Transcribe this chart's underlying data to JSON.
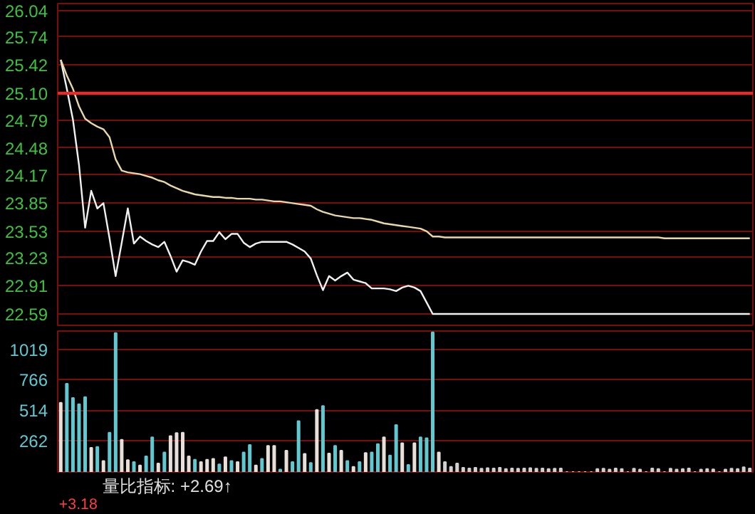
{
  "chart_data": [
    {
      "type": "line",
      "categories": [
        null,
        null,
        null,
        null,
        null,
        null,
        null,
        null,
        null,
        null,
        null,
        null,
        null,
        null,
        null,
        null,
        null,
        null,
        null,
        null,
        null,
        null,
        null,
        null,
        null,
        null,
        null,
        null,
        null,
        null,
        null,
        null,
        null,
        null,
        null,
        null,
        null,
        null,
        null,
        null,
        null,
        null,
        null,
        null,
        null,
        null,
        null,
        null,
        null,
        null,
        null,
        null,
        null,
        null,
        null,
        null,
        null,
        null,
        null,
        null,
        null,
        null,
        null,
        null,
        null,
        null,
        null,
        null,
        null,
        null,
        null,
        null,
        null,
        null,
        null,
        null,
        null,
        null,
        null,
        null,
        null,
        null,
        null,
        null,
        null,
        null,
        null,
        null,
        null,
        null,
        null,
        null,
        null,
        null,
        null,
        null,
        null,
        null,
        null,
        null,
        null,
        null,
        null,
        null,
        null,
        null,
        null,
        null,
        null,
        null,
        null,
        null,
        null,
        null
      ],
      "ylim": [
        22.46,
        26.12
      ],
      "yticks": [
        22.59,
        22.91,
        23.23,
        23.53,
        23.85,
        24.17,
        24.48,
        24.79,
        {
          "value": 25.1,
          "label": "25.10"
        },
        25.42,
        25.74,
        26.04
      ],
      "tick_labels": "y",
      "grid": "y",
      "ref_lines": [
        {
          "axis": "y",
          "value": 25.1,
          "color": "#ff2020"
        }
      ],
      "series": [
        {
          "color": "#f0f0f0",
          "values": [
            25.48,
            25.15,
            24.8,
            24.28,
            23.57,
            23.99,
            23.79,
            23.85,
            23.45,
            23.02,
            23.4,
            23.79,
            23.39,
            23.47,
            23.42,
            23.38,
            23.35,
            23.41,
            23.25,
            23.07,
            23.2,
            23.18,
            23.15,
            23.3,
            23.42,
            23.42,
            23.52,
            23.44,
            23.5,
            23.5,
            23.4,
            23.35,
            23.39,
            23.41,
            23.41,
            23.41,
            23.41,
            23.41,
            23.38,
            23.34,
            23.3,
            23.22,
            23.03,
            22.86,
            23.02,
            22.97,
            23.02,
            23.06,
            22.98,
            22.96,
            22.94,
            22.88,
            22.88,
            22.88,
            22.87,
            22.85,
            22.89,
            22.91,
            22.89,
            22.85,
            22.72,
            22.59,
            22.59,
            22.59,
            22.59,
            22.59,
            22.59,
            22.59,
            22.59,
            22.59,
            22.59,
            22.59,
            22.59,
            22.59,
            22.59,
            22.59,
            22.59,
            22.59,
            22.59,
            22.59,
            22.59,
            22.59,
            22.59,
            22.59,
            22.59,
            22.59,
            22.59,
            22.59,
            22.59,
            22.59,
            22.59,
            22.59,
            22.59,
            22.59,
            22.59,
            22.59,
            22.59,
            22.59,
            22.59,
            22.59,
            22.59,
            22.59,
            22.59,
            22.59,
            22.59,
            22.59,
            22.59,
            22.59,
            22.59,
            22.59,
            22.59,
            22.59,
            22.59,
            22.59
          ]
        },
        {
          "color": "#e8d8a8",
          "values": [
            25.48,
            25.3,
            25.15,
            24.95,
            24.81,
            24.76,
            24.72,
            24.69,
            24.6,
            24.35,
            24.22,
            24.2,
            24.19,
            24.18,
            24.16,
            24.14,
            24.11,
            24.09,
            24.05,
            24.02,
            23.99,
            23.97,
            23.95,
            23.94,
            23.93,
            23.92,
            23.92,
            23.91,
            23.91,
            23.9,
            23.9,
            23.9,
            23.89,
            23.89,
            23.88,
            23.87,
            23.87,
            23.86,
            23.85,
            23.84,
            23.83,
            23.82,
            23.78,
            23.75,
            23.73,
            23.71,
            23.7,
            23.69,
            23.68,
            23.68,
            23.67,
            23.66,
            23.64,
            23.62,
            23.61,
            23.6,
            23.59,
            23.58,
            23.57,
            23.56,
            23.53,
            23.47,
            23.47,
            23.46,
            23.46,
            23.46,
            23.46,
            23.46,
            23.46,
            23.46,
            23.46,
            23.46,
            23.46,
            23.46,
            23.46,
            23.46,
            23.46,
            23.46,
            23.46,
            23.46,
            23.46,
            23.46,
            23.46,
            23.46,
            23.46,
            23.46,
            23.46,
            23.46,
            23.46,
            23.46,
            23.46,
            23.46,
            23.46,
            23.46,
            23.46,
            23.46,
            23.46,
            23.46,
            23.46,
            23.45,
            23.45,
            23.45,
            23.45,
            23.45,
            23.45,
            23.45,
            23.45,
            23.45,
            23.45,
            23.45,
            23.45,
            23.45,
            23.45,
            23.45
          ]
        }
      ]
    },
    {
      "type": "bar",
      "categories": [
        null,
        null,
        null,
        null,
        null,
        null,
        null,
        null,
        null,
        null,
        null,
        null,
        null,
        null,
        null,
        null,
        null,
        null,
        null,
        null,
        null,
        null,
        null,
        null,
        null,
        null,
        null,
        null,
        null,
        null,
        null,
        null,
        null,
        null,
        null,
        null,
        null,
        null,
        null,
        null,
        null,
        null,
        null,
        null,
        null,
        null,
        null,
        null,
        null,
        null,
        null,
        null,
        null,
        null,
        null,
        null,
        null,
        null,
        null,
        null,
        null,
        null,
        null,
        null,
        null,
        null,
        null,
        null,
        null,
        null,
        null,
        null,
        null,
        null,
        null,
        null,
        null,
        null,
        null,
        null,
        null,
        null,
        null,
        null,
        null,
        null,
        null,
        null,
        null,
        null,
        null,
        null,
        null,
        null,
        null,
        null,
        null,
        null,
        null,
        null,
        null,
        null,
        null,
        null,
        null,
        null,
        null,
        null,
        null,
        null,
        null,
        null,
        null,
        null
      ],
      "ylim": [
        0,
        1170
      ],
      "yticks": [
        262,
        514,
        766,
        1019
      ],
      "tick_labels": "y",
      "grid": "y",
      "annotations": [
        "量比指标: +2.69↑",
        "+3.18"
      ],
      "values": [
        575,
        733,
        615,
        563,
        622,
        201,
        209,
        91,
        327,
        1154,
        268,
        99,
        83,
        55,
        130,
        288,
        71,
        162,
        299,
        323,
        327,
        130,
        102,
        83,
        102,
        110,
        63,
        122,
        91,
        83,
        162,
        225,
        55,
        110,
        217,
        217,
        20,
        177,
        83,
        422,
        150,
        75,
        516,
        548,
        154,
        217,
        177,
        91,
        43,
        83,
        158,
        162,
        232,
        288,
        138,
        390,
        240,
        59,
        240,
        288,
        280,
        1160,
        162,
        83,
        43,
        71,
        35,
        30,
        35,
        28,
        32,
        30,
        35,
        25,
        30,
        28,
        30,
        32,
        28,
        30,
        25,
        28,
        30,
        0,
        0,
        0,
        0,
        0,
        25,
        28,
        20,
        30,
        25,
        0,
        28,
        20,
        0,
        30,
        25,
        0,
        28,
        20,
        25,
        30,
        0,
        20,
        25,
        22,
        0,
        20,
        28,
        25,
        40,
        30
      ],
      "colors": [
        "#e8e0d8",
        "#60c8d0",
        "#60c8d0",
        "#60c8d0",
        "#60c8d0",
        "#e8e0d8",
        "#60c8d0",
        "#e8e0d8",
        "#60c8d0",
        "#60c8d0",
        "#e8e0d8",
        "#e8e0d8",
        "#60c8d0",
        "#e8e0d8",
        "#60c8d0",
        "#60c8d0",
        "#e8e0d8",
        "#60c8d0",
        "#e8e0d8",
        "#e8e0d8",
        "#e8e0d8",
        "#e8e0d8",
        "#60c8d0",
        "#e8e0d8",
        "#e8e0d8",
        "#e8e0d8",
        "#60c8d0",
        "#e8e0d8",
        "#60c8d0",
        "#e8e0d8",
        "#60c8d0",
        "#60c8d0",
        "#e8e0d8",
        "#60c8d0",
        "#e8e0d8",
        "#e8e0d8",
        "#60c8d0",
        "#e8e0d8",
        "#60c8d0",
        "#60c8d0",
        "#e8e0d8",
        "#60c8d0",
        "#e8e0d8",
        "#60c8d0",
        "#e8e0d8",
        "#60c8d0",
        "#e8e0d8",
        "#60c8d0",
        "#e8e0d8",
        "#60c8d0",
        "#e8e0d8",
        "#60c8d0",
        "#60c8d0",
        "#e8e0d8",
        "#60c8d0",
        "#60c8d0",
        "#e8e0d8",
        "#60c8d0",
        "#e8e0d8",
        "#60c8d0",
        "#60c8d0",
        "#60c8d0",
        "#e8e0d8",
        "#d0d0d0",
        "#d0d0d0",
        "#d0d0d0",
        "#d0d0d0",
        "#d0d0d0",
        "#d0d0d0",
        "#d0d0d0",
        "#d0d0d0",
        "#d0d0d0",
        "#d0d0d0",
        "#d0d0d0",
        "#d0d0d0",
        "#d0d0d0",
        "#d0d0d0",
        "#d0d0d0",
        "#d0d0d0",
        "#d0d0d0",
        "#d0d0d0",
        "#d0d0d0",
        "#d0d0d0",
        "#d0d0d0",
        "#d0d0d0",
        "#d0d0d0",
        "#d0d0d0",
        "#d0d0d0",
        "#d0d0d0",
        "#d0d0d0",
        "#d0d0d0",
        "#d0d0d0",
        "#d0d0d0",
        "#d0d0d0",
        "#d0d0d0",
        "#d0d0d0",
        "#d0d0d0",
        "#d0d0d0",
        "#d0d0d0",
        "#d0d0d0",
        "#d0d0d0",
        "#d0d0d0",
        "#d0d0d0",
        "#d0d0d0",
        "#d0d0d0",
        "#d0d0d0",
        "#d0d0d0",
        "#d0d0d0",
        "#d0d0d0",
        "#d0d0d0",
        "#d0d0d0",
        "#d0d0d0",
        "#d0d0d0",
        "#d0d0d0"
      ]
    }
  ]
}
